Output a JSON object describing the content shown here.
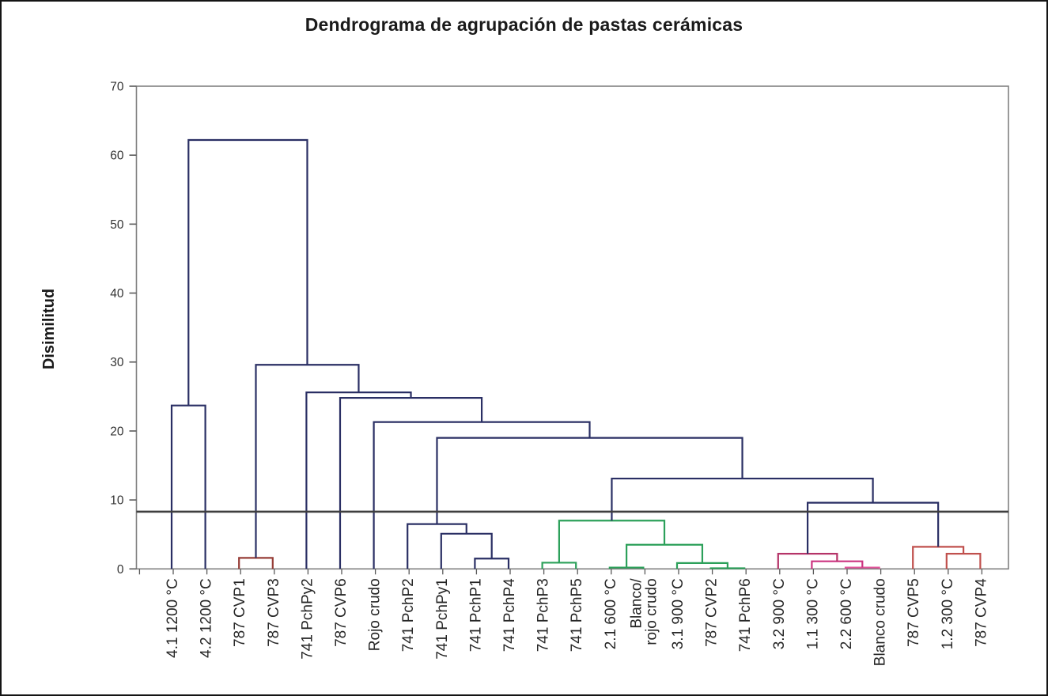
{
  "chart_data": {
    "type": "dendrogram",
    "title": "Dendrograma de agrupación de pastas cerámicas",
    "ylabel": "Disimilitud",
    "ylim": [
      0,
      70
    ],
    "yticks": [
      0,
      10,
      20,
      30,
      40,
      50,
      60,
      70
    ],
    "grid": "off",
    "legend": "none",
    "cut_line_value": 8.3,
    "leaves": [
      {
        "label": "4.1 1200 °C"
      },
      {
        "label": "4.2 1200 °C"
      },
      {
        "label": "787 CVP1"
      },
      {
        "label": "787 CVP3"
      },
      {
        "label": "741 PchPy2"
      },
      {
        "label": "787 CVP6"
      },
      {
        "label": "Rojo crudo"
      },
      {
        "label": "741 PchP2"
      },
      {
        "label": "741 PchPy1"
      },
      {
        "label": "741 PchP1"
      },
      {
        "label": "741 PchP4"
      },
      {
        "label": "741 PchP3"
      },
      {
        "label": "741 PchP5"
      },
      {
        "label": "2.1 600 °C"
      },
      {
        "label": "Blanco/ rojo crudo",
        "lines": [
          "Blanco/",
          "rojo crudo"
        ]
      },
      {
        "label": "3.1 900 °C"
      },
      {
        "label": "787 CVP2"
      },
      {
        "label": "741 PchP6"
      },
      {
        "label": "3.2 900 °C"
      },
      {
        "label": "1.1 300 °C"
      },
      {
        "label": "2.2 600 °C"
      },
      {
        "label": "Blanco crudo"
      },
      {
        "label": "787 CVP5"
      },
      {
        "label": "1.2 300 °C"
      },
      {
        "label": "787 CVP4"
      }
    ],
    "merges": [
      {
        "id": "M1",
        "a": "L3",
        "b": "L4",
        "h": 1.6,
        "color": "dark_red"
      },
      {
        "id": "M2",
        "a": "L10",
        "b": "L11",
        "h": 1.5,
        "color": "navy"
      },
      {
        "id": "M3",
        "a": "L9",
        "b": "M2",
        "h": 5.1,
        "color": "navy"
      },
      {
        "id": "M4",
        "a": "L8",
        "b": "M3",
        "h": 6.5,
        "color": "navy"
      },
      {
        "id": "M5",
        "a": "L12",
        "b": "L13",
        "h": 0.9,
        "color": "green"
      },
      {
        "id": "M6",
        "a": "L14",
        "b": "L15",
        "h": 0.2,
        "color": "green"
      },
      {
        "id": "M7",
        "a": "L17",
        "b": "L18",
        "h": 0.1,
        "color": "green"
      },
      {
        "id": "M8",
        "a": "L16",
        "b": "M7",
        "h": 0.85,
        "color": "green"
      },
      {
        "id": "M9",
        "a": "M6",
        "b": "M8",
        "h": 3.5,
        "color": "green"
      },
      {
        "id": "M10",
        "a": "M5",
        "b": "M9",
        "h": 7.0,
        "color": "green"
      },
      {
        "id": "M11",
        "a": "L21",
        "b": "L22",
        "h": 0.2,
        "color": "pink_light"
      },
      {
        "id": "M12",
        "a": "L20",
        "b": "M11",
        "h": 1.1,
        "color": "pink"
      },
      {
        "id": "M13",
        "a": "L19",
        "b": "M12",
        "h": 2.2,
        "color": "pink_dark"
      },
      {
        "id": "M14",
        "a": "L24",
        "b": "L25",
        "h": 2.2,
        "color": "red"
      },
      {
        "id": "M15",
        "a": "L23",
        "b": "M14",
        "h": 3.2,
        "color": "red"
      },
      {
        "id": "M16",
        "a": "M13",
        "b": "M15",
        "h": 9.6,
        "color": "navy"
      },
      {
        "id": "M17",
        "a": "M10",
        "b": "M16",
        "h": 13.1,
        "color": "navy"
      },
      {
        "id": "M18",
        "a": "M4",
        "b": "M17",
        "h": 19.0,
        "color": "navy"
      },
      {
        "id": "M19",
        "a": "L7",
        "b": "M18",
        "h": 21.3,
        "color": "navy"
      },
      {
        "id": "M20",
        "a": "L6",
        "b": "M19",
        "h": 24.8,
        "color": "navy"
      },
      {
        "id": "M21",
        "a": "L5",
        "b": "M20",
        "h": 25.6,
        "color": "navy"
      },
      {
        "id": "M22",
        "a": "M1",
        "b": "M21",
        "h": 29.6,
        "color": "navy"
      },
      {
        "id": "M23",
        "a": "L1",
        "b": "L2",
        "h": 23.7,
        "color": "navy"
      },
      {
        "id": "M24",
        "a": "M23",
        "b": "M22",
        "h": 62.2,
        "color": "navy"
      }
    ],
    "colors": {
      "navy": "#2a2f64",
      "dark_red": "#963c36",
      "green": "#2ca05a",
      "pink": "#cc3380",
      "pink_light": "#e0559a",
      "pink_dark": "#b53368",
      "red": "#c0504d",
      "cut_line": "#3f3f3f",
      "axis": "#808080",
      "tick": "#595959",
      "tick_label": "#333333",
      "leaf_label": "#262626"
    }
  }
}
